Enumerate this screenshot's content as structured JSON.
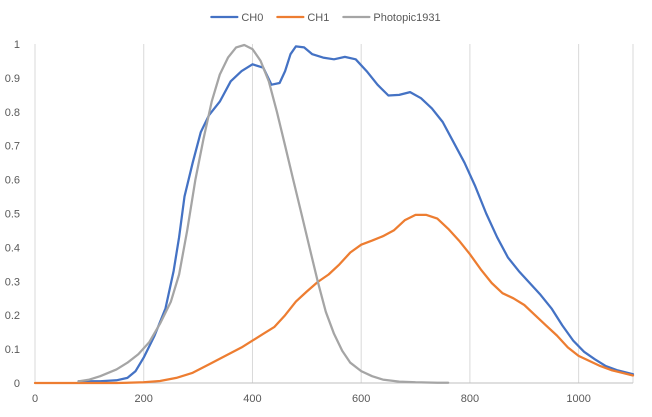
{
  "chart_data": {
    "type": "line",
    "title": "",
    "xlabel": "",
    "ylabel": "",
    "xlim": [
      0,
      1100
    ],
    "ylim": [
      0,
      1
    ],
    "x_ticks": [
      0,
      200,
      400,
      600,
      800,
      1000
    ],
    "x_tick_labels": [
      "0",
      "200",
      "400",
      "600",
      "800",
      "1000"
    ],
    "y_ticks": [
      0,
      0.1,
      0.2,
      0.3,
      0.4,
      0.5,
      0.6,
      0.7,
      0.8,
      0.9,
      1
    ],
    "y_tick_labels": [
      "0",
      "0.1",
      "0.2",
      "0.3",
      "0.4",
      "0.5",
      "0.6",
      "0.7",
      "0.8",
      "0.9",
      "1"
    ],
    "grid": "vertical",
    "legend_position": "top",
    "series": [
      {
        "name": "CH0",
        "color": "#4472C4",
        "points": [
          [
            80,
            0.005
          ],
          [
            120,
            0.005
          ],
          [
            150,
            0.008
          ],
          [
            170,
            0.015
          ],
          [
            185,
            0.035
          ],
          [
            200,
            0.075
          ],
          [
            220,
            0.14
          ],
          [
            240,
            0.22
          ],
          [
            255,
            0.33
          ],
          [
            265,
            0.43
          ],
          [
            275,
            0.55
          ],
          [
            290,
            0.65
          ],
          [
            305,
            0.74
          ],
          [
            320,
            0.79
          ],
          [
            340,
            0.83
          ],
          [
            360,
            0.89
          ],
          [
            380,
            0.92
          ],
          [
            400,
            0.94
          ],
          [
            420,
            0.93
          ],
          [
            435,
            0.88
          ],
          [
            450,
            0.885
          ],
          [
            460,
            0.92
          ],
          [
            470,
            0.97
          ],
          [
            480,
            0.993
          ],
          [
            495,
            0.99
          ],
          [
            510,
            0.97
          ],
          [
            530,
            0.96
          ],
          [
            550,
            0.955
          ],
          [
            570,
            0.962
          ],
          [
            590,
            0.955
          ],
          [
            610,
            0.92
          ],
          [
            630,
            0.88
          ],
          [
            650,
            0.848
          ],
          [
            670,
            0.85
          ],
          [
            690,
            0.858
          ],
          [
            710,
            0.84
          ],
          [
            730,
            0.81
          ],
          [
            750,
            0.77
          ],
          [
            770,
            0.71
          ],
          [
            790,
            0.65
          ],
          [
            810,
            0.58
          ],
          [
            830,
            0.5
          ],
          [
            850,
            0.43
          ],
          [
            870,
            0.37
          ],
          [
            890,
            0.33
          ],
          [
            910,
            0.295
          ],
          [
            930,
            0.26
          ],
          [
            950,
            0.22
          ],
          [
            970,
            0.17
          ],
          [
            990,
            0.125
          ],
          [
            1010,
            0.092
          ],
          [
            1030,
            0.07
          ],
          [
            1050,
            0.05
          ],
          [
            1070,
            0.038
          ],
          [
            1090,
            0.03
          ],
          [
            1100,
            0.026
          ]
        ]
      },
      {
        "name": "CH1",
        "color": "#ED7D31",
        "points": [
          [
            0,
            0
          ],
          [
            150,
            0
          ],
          [
            200,
            0.002
          ],
          [
            230,
            0.006
          ],
          [
            260,
            0.015
          ],
          [
            290,
            0.03
          ],
          [
            320,
            0.055
          ],
          [
            350,
            0.08
          ],
          [
            380,
            0.105
          ],
          [
            400,
            0.125
          ],
          [
            420,
            0.145
          ],
          [
            440,
            0.165
          ],
          [
            460,
            0.2
          ],
          [
            480,
            0.24
          ],
          [
            500,
            0.27
          ],
          [
            520,
            0.298
          ],
          [
            540,
            0.32
          ],
          [
            560,
            0.35
          ],
          [
            580,
            0.385
          ],
          [
            600,
            0.408
          ],
          [
            620,
            0.42
          ],
          [
            640,
            0.433
          ],
          [
            660,
            0.45
          ],
          [
            680,
            0.48
          ],
          [
            700,
            0.496
          ],
          [
            720,
            0.496
          ],
          [
            740,
            0.485
          ],
          [
            760,
            0.455
          ],
          [
            780,
            0.42
          ],
          [
            800,
            0.38
          ],
          [
            820,
            0.335
          ],
          [
            840,
            0.295
          ],
          [
            860,
            0.265
          ],
          [
            880,
            0.25
          ],
          [
            900,
            0.23
          ],
          [
            920,
            0.2
          ],
          [
            940,
            0.17
          ],
          [
            960,
            0.14
          ],
          [
            980,
            0.105
          ],
          [
            1000,
            0.08
          ],
          [
            1020,
            0.065
          ],
          [
            1040,
            0.05
          ],
          [
            1060,
            0.038
          ],
          [
            1080,
            0.03
          ],
          [
            1100,
            0.022
          ]
        ]
      },
      {
        "name": "Photopic1931",
        "color": "#A5A5A5",
        "points": [
          [
            80,
            0.005
          ],
          [
            100,
            0.01
          ],
          [
            120,
            0.02
          ],
          [
            150,
            0.04
          ],
          [
            170,
            0.06
          ],
          [
            190,
            0.085
          ],
          [
            210,
            0.12
          ],
          [
            230,
            0.175
          ],
          [
            250,
            0.24
          ],
          [
            265,
            0.32
          ],
          [
            280,
            0.45
          ],
          [
            295,
            0.6
          ],
          [
            310,
            0.72
          ],
          [
            325,
            0.83
          ],
          [
            340,
            0.91
          ],
          [
            355,
            0.96
          ],
          [
            370,
            0.99
          ],
          [
            385,
            0.997
          ],
          [
            400,
            0.985
          ],
          [
            415,
            0.95
          ],
          [
            430,
            0.89
          ],
          [
            445,
            0.8
          ],
          [
            460,
            0.7
          ],
          [
            475,
            0.6
          ],
          [
            490,
            0.5
          ],
          [
            505,
            0.4
          ],
          [
            520,
            0.3
          ],
          [
            535,
            0.21
          ],
          [
            550,
            0.145
          ],
          [
            565,
            0.095
          ],
          [
            580,
            0.06
          ],
          [
            600,
            0.035
          ],
          [
            620,
            0.02
          ],
          [
            640,
            0.01
          ],
          [
            670,
            0.004
          ],
          [
            700,
            0.002
          ],
          [
            740,
            0.001
          ],
          [
            760,
            0.001
          ]
        ]
      }
    ]
  }
}
